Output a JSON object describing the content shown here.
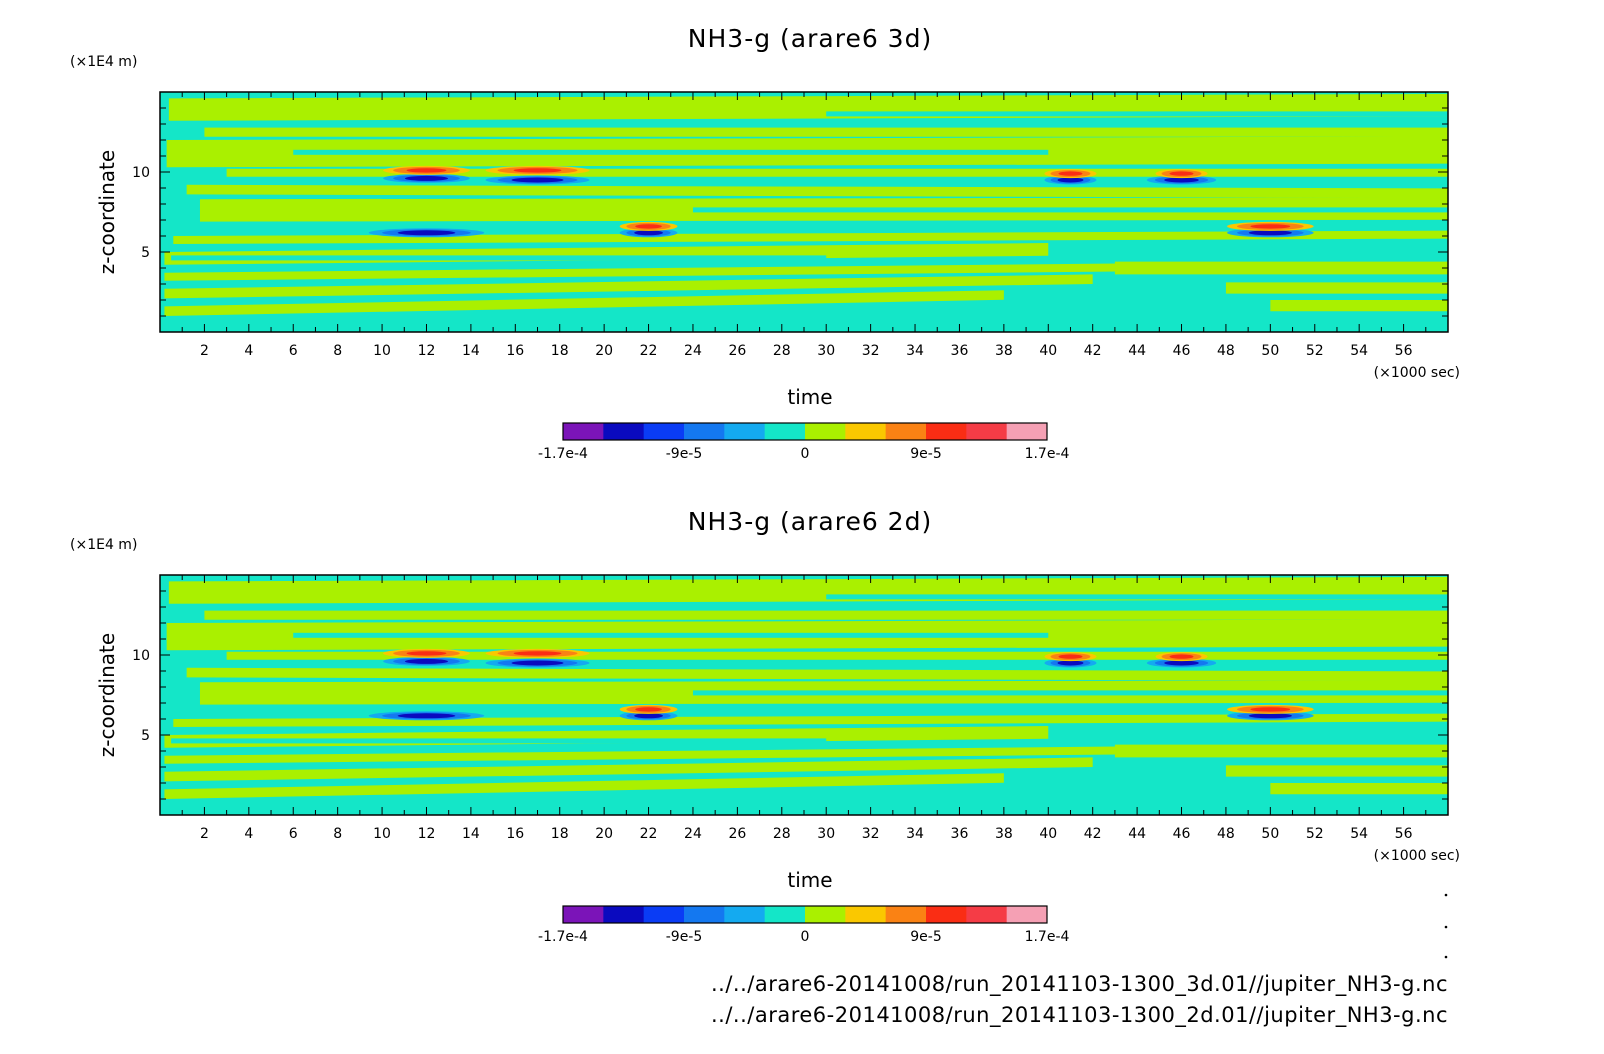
{
  "chart_data": [
    {
      "type": "heatmap",
      "title": "NH3-g (arare6 3d)",
      "xlabel": "time",
      "x_unit": "(×1000 sec)",
      "ylabel": "z-coordinate",
      "y_unit": "(×1E4 m)",
      "xlim": [
        0,
        58
      ],
      "ylim": [
        0,
        15
      ],
      "x_ticks": [
        "2",
        "4",
        "6",
        "8",
        "10",
        "12",
        "14",
        "16",
        "18",
        "20",
        "22",
        "24",
        "26",
        "28",
        "30",
        "32",
        "34",
        "36",
        "38",
        "40",
        "42",
        "44",
        "46",
        "48",
        "50",
        "52",
        "54",
        "56"
      ],
      "y_ticks": [
        "5",
        "10"
      ],
      "colorbar": {
        "colors": [
          "#7b14b8",
          "#0a0abf",
          "#0a3cf5",
          "#1478f0",
          "#14aaf0",
          "#14e6c8",
          "#aaf000",
          "#fac800",
          "#fa8214",
          "#fa2d14",
          "#f53c46",
          "#f5a0b4"
        ],
        "tick_labels": [
          "-1.7e-4",
          "-9e-5",
          "0",
          "9e-5",
          "1.7e-4"
        ]
      },
      "features": [
        {
          "z": 9.6,
          "t_center": 12,
          "width": 3.0,
          "sign": "neg"
        },
        {
          "z": 10.1,
          "t_center": 12,
          "width": 3.0,
          "sign": "pos"
        },
        {
          "z": 9.5,
          "t_center": 17,
          "width": 3.6,
          "sign": "neg"
        },
        {
          "z": 10.1,
          "t_center": 17,
          "width": 3.6,
          "sign": "pos"
        },
        {
          "z": 9.5,
          "t_center": 41,
          "width": 1.8,
          "sign": "neg"
        },
        {
          "z": 9.9,
          "t_center": 41,
          "width": 1.8,
          "sign": "pos"
        },
        {
          "z": 9.5,
          "t_center": 46,
          "width": 2.4,
          "sign": "neg"
        },
        {
          "z": 9.9,
          "t_center": 46,
          "width": 1.8,
          "sign": "pos"
        },
        {
          "z": 6.2,
          "t_center": 12,
          "width": 4.0,
          "sign": "neg"
        },
        {
          "z": 6.2,
          "t_center": 22,
          "width": 2.0,
          "sign": "neg"
        },
        {
          "z": 6.6,
          "t_center": 22,
          "width": 2.0,
          "sign": "pos"
        },
        {
          "z": 6.2,
          "t_center": 50,
          "width": 3.0,
          "sign": "neg"
        },
        {
          "z": 6.6,
          "t_center": 50,
          "width": 3.0,
          "sign": "pos"
        }
      ]
    },
    {
      "type": "heatmap",
      "title": "NH3-g (arare6 2d)",
      "xlabel": "time",
      "x_unit": "(×1000 sec)",
      "ylabel": "z-coordinate",
      "y_unit": "(×1E4 m)",
      "xlim": [
        0,
        58
      ],
      "ylim": [
        0,
        15
      ],
      "x_ticks": [
        "2",
        "4",
        "6",
        "8",
        "10",
        "12",
        "14",
        "16",
        "18",
        "20",
        "22",
        "24",
        "26",
        "28",
        "30",
        "32",
        "34",
        "36",
        "38",
        "40",
        "42",
        "44",
        "46",
        "48",
        "50",
        "52",
        "54",
        "56"
      ],
      "y_ticks": [
        "5",
        "10"
      ],
      "colorbar": {
        "colors": [
          "#7b14b8",
          "#0a0abf",
          "#0a3cf5",
          "#1478f0",
          "#14aaf0",
          "#14e6c8",
          "#aaf000",
          "#fac800",
          "#fa8214",
          "#fa2d14",
          "#f53c46",
          "#f5a0b4"
        ],
        "tick_labels": [
          "-1.7e-4",
          "-9e-5",
          "0",
          "9e-5",
          "1.7e-4"
        ]
      },
      "features": [
        {
          "z": 9.6,
          "t_center": 12,
          "width": 3.0,
          "sign": "neg"
        },
        {
          "z": 10.1,
          "t_center": 12,
          "width": 3.0,
          "sign": "pos"
        },
        {
          "z": 9.5,
          "t_center": 17,
          "width": 3.6,
          "sign": "neg"
        },
        {
          "z": 10.1,
          "t_center": 17,
          "width": 3.6,
          "sign": "pos"
        },
        {
          "z": 9.5,
          "t_center": 41,
          "width": 1.8,
          "sign": "neg"
        },
        {
          "z": 9.9,
          "t_center": 41,
          "width": 1.8,
          "sign": "pos"
        },
        {
          "z": 9.5,
          "t_center": 46,
          "width": 2.4,
          "sign": "neg"
        },
        {
          "z": 9.9,
          "t_center": 46,
          "width": 1.8,
          "sign": "pos"
        },
        {
          "z": 6.2,
          "t_center": 12,
          "width": 4.0,
          "sign": "neg"
        },
        {
          "z": 6.2,
          "t_center": 22,
          "width": 2.0,
          "sign": "neg"
        },
        {
          "z": 6.6,
          "t_center": 22,
          "width": 2.0,
          "sign": "pos"
        },
        {
          "z": 6.2,
          "t_center": 50,
          "width": 3.0,
          "sign": "neg"
        },
        {
          "z": 6.6,
          "t_center": 50,
          "width": 3.0,
          "sign": "pos"
        }
      ]
    }
  ],
  "footer": {
    "file_3d": "../../arare6-20141008/run_20141103-1300_3d.01//jupiter_NH3-g.nc",
    "file_2d": "../../arare6-20141008/run_20141103-1300_2d.01//jupiter_NH3-g.nc"
  }
}
